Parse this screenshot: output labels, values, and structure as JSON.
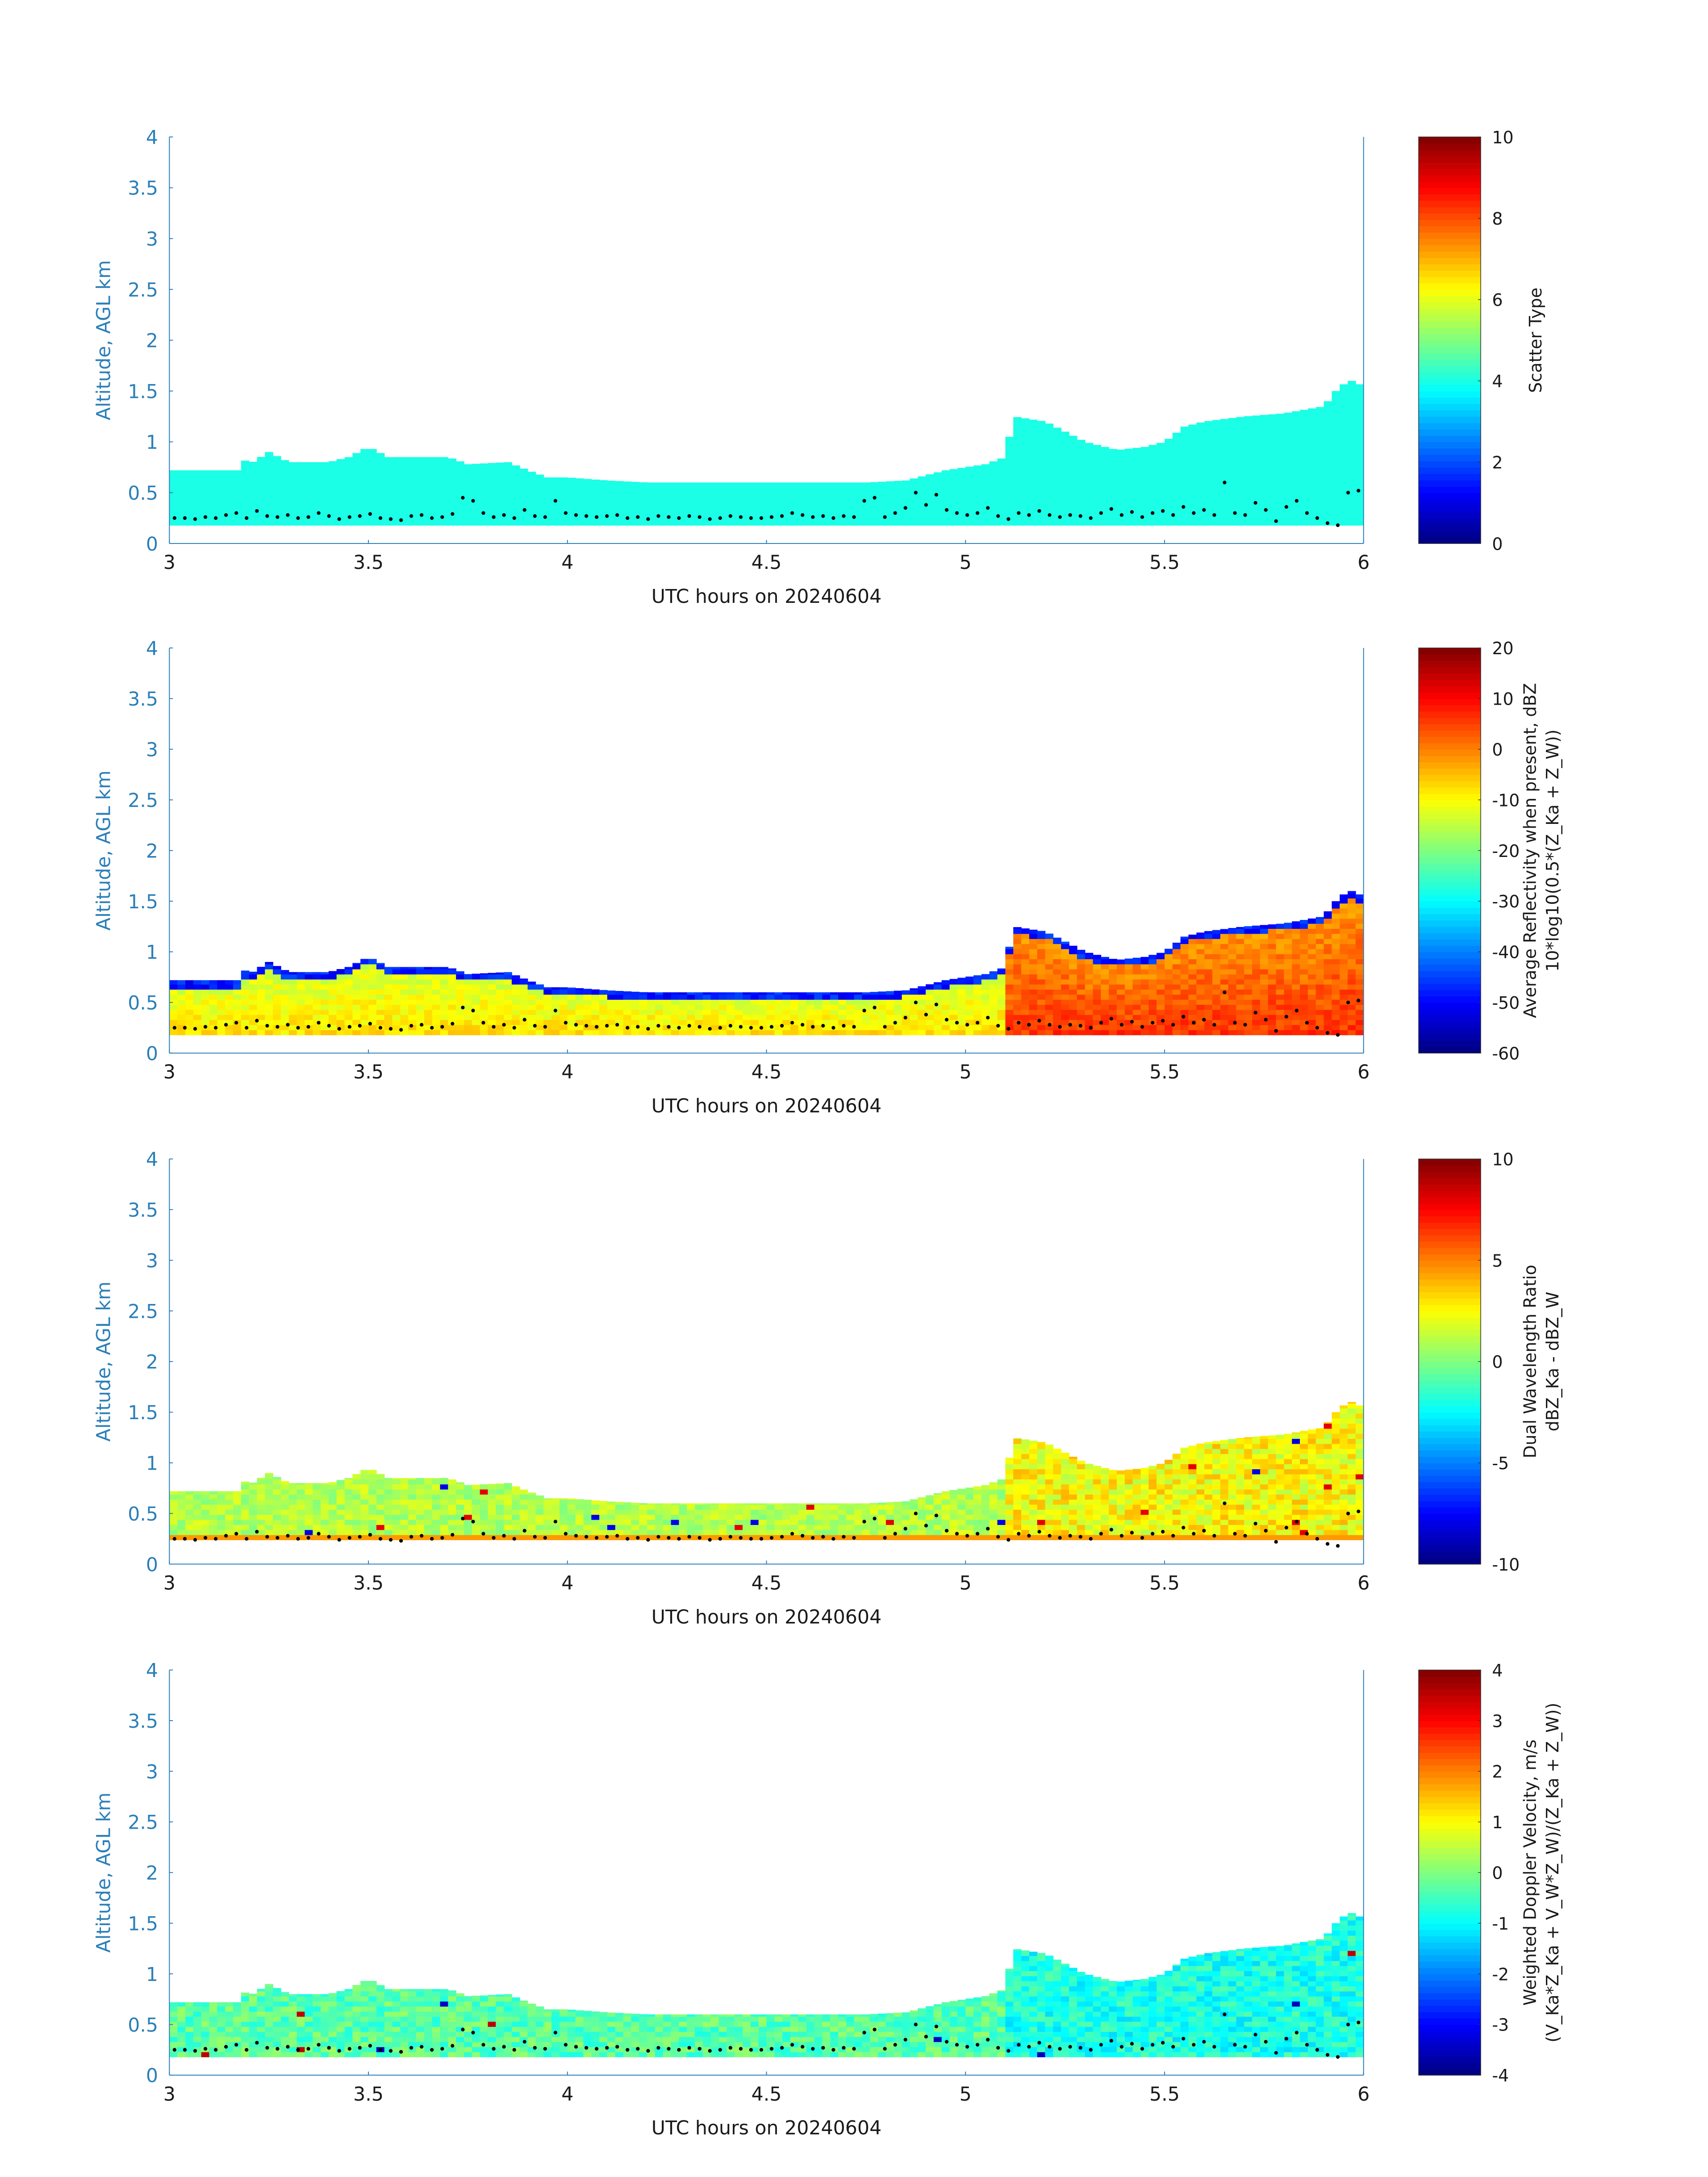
{
  "figure": {
    "date": "20240604"
  },
  "chart_data": [
    {
      "type": "heatmap",
      "title": "",
      "xlabel": "UTC hours on 20240604",
      "ylabel": "Altitude, AGL km",
      "xlim": [
        3,
        6
      ],
      "ylim": [
        0,
        4
      ],
      "xticks": [
        "3",
        "3.5",
        "4",
        "4.5",
        "5",
        "5.5",
        "6"
      ],
      "yticks": [
        "0",
        "0.5",
        "1",
        "1.5",
        "2",
        "2.5",
        "3",
        "3.5",
        "4"
      ],
      "colorbar": {
        "label_lines": [
          "Scatter Type"
        ],
        "clim": [
          0,
          10
        ],
        "ticks": [
          "0",
          "2",
          "4",
          "6",
          "8",
          "10"
        ]
      },
      "field": "scatter_type",
      "cloud_base_km": 0.18,
      "cloud_top_km": [
        [
          3.0,
          0.72
        ],
        [
          3.17,
          0.72
        ],
        [
          3.18,
          0.85
        ],
        [
          3.2,
          0.78
        ],
        [
          3.25,
          0.9
        ],
        [
          3.3,
          0.8
        ],
        [
          3.4,
          0.8
        ],
        [
          3.45,
          0.85
        ],
        [
          3.5,
          0.95
        ],
        [
          3.55,
          0.85
        ],
        [
          3.65,
          0.85
        ],
        [
          3.7,
          0.85
        ],
        [
          3.75,
          0.78
        ],
        [
          3.85,
          0.8
        ],
        [
          3.9,
          0.72
        ],
        [
          3.95,
          0.65
        ],
        [
          4.0,
          0.65
        ],
        [
          4.1,
          0.62
        ],
        [
          4.2,
          0.6
        ],
        [
          4.5,
          0.6
        ],
        [
          4.75,
          0.6
        ],
        [
          4.85,
          0.62
        ],
        [
          4.95,
          0.72
        ],
        [
          5.05,
          0.78
        ],
        [
          5.1,
          0.85
        ],
        [
          5.12,
          1.25
        ],
        [
          5.2,
          1.2
        ],
        [
          5.25,
          1.1
        ],
        [
          5.3,
          1.0
        ],
        [
          5.38,
          0.92
        ],
        [
          5.45,
          0.95
        ],
        [
          5.5,
          1.0
        ],
        [
          5.55,
          1.15
        ],
        [
          5.6,
          1.2
        ],
        [
          5.7,
          1.25
        ],
        [
          5.8,
          1.28
        ],
        [
          5.9,
          1.35
        ],
        [
          5.94,
          1.55
        ],
        [
          5.97,
          1.6
        ],
        [
          6.0,
          1.55
        ]
      ],
      "base_value": 4,
      "dot_heights_km": [
        0.25,
        0.25,
        0.24,
        0.26,
        0.25,
        0.28,
        0.3,
        0.25,
        0.32,
        0.27,
        0.26,
        0.28,
        0.25,
        0.26,
        0.3,
        0.27,
        0.24,
        0.26,
        0.27,
        0.29,
        0.25,
        0.24,
        0.23,
        0.27,
        0.28,
        0.25,
        0.26,
        0.29,
        0.45,
        0.42,
        0.3,
        0.26,
        0.28,
        0.25,
        0.33,
        0.27,
        0.26,
        0.42,
        0.3,
        0.28,
        0.27,
        0.26,
        0.27,
        0.28,
        0.25,
        0.26,
        0.24,
        0.27,
        0.26,
        0.25,
        0.27,
        0.26,
        0.24,
        0.25,
        0.27,
        0.26,
        0.25,
        0.25,
        0.26,
        0.27,
        0.3,
        0.28,
        0.26,
        0.27,
        0.25,
        0.27,
        0.26,
        0.42,
        0.45,
        0.26,
        0.3,
        0.35,
        0.5,
        0.38,
        0.48,
        0.33,
        0.3,
        0.28,
        0.3,
        0.35,
        0.27,
        0.24,
        0.3,
        0.28,
        0.32,
        0.28,
        0.26,
        0.28,
        0.27,
        0.25,
        0.3,
        0.34,
        0.28,
        0.31,
        0.26,
        0.3,
        0.32,
        0.28,
        0.36,
        0.3,
        0.33,
        0.28,
        0.6,
        0.3,
        0.28,
        0.4,
        0.33,
        0.22,
        0.36,
        0.42,
        0.3,
        0.25,
        0.2,
        0.18,
        0.5,
        0.52
      ]
    },
    {
      "type": "heatmap",
      "title": "",
      "xlabel": "UTC hours on 20240604",
      "ylabel": "Altitude, AGL km",
      "xlim": [
        3,
        6
      ],
      "ylim": [
        0,
        4
      ],
      "xticks": [
        "3",
        "3.5",
        "4",
        "4.5",
        "5",
        "5.5",
        "6"
      ],
      "yticks": [
        "0",
        "0.5",
        "1",
        "1.5",
        "2",
        "2.5",
        "3",
        "3.5",
        "4"
      ],
      "colorbar": {
        "label_lines": [
          "Average Reflectivity when present, dBZ",
          "10*log10(0.5*(Z_Ka + Z_W))"
        ],
        "clim": [
          -60,
          20
        ],
        "ticks": [
          "-60",
          "-50",
          "-40",
          "-30",
          "-20",
          "-10",
          "0",
          "10",
          "20"
        ]
      },
      "field": "reflectivity",
      "cloud_base_km": 0.18,
      "cloud_top_km": [
        [
          3.0,
          0.72
        ],
        [
          3.17,
          0.72
        ],
        [
          3.18,
          0.85
        ],
        [
          3.2,
          0.78
        ],
        [
          3.25,
          0.9
        ],
        [
          3.3,
          0.8
        ],
        [
          3.4,
          0.8
        ],
        [
          3.45,
          0.85
        ],
        [
          3.5,
          0.95
        ],
        [
          3.55,
          0.85
        ],
        [
          3.65,
          0.85
        ],
        [
          3.7,
          0.85
        ],
        [
          3.75,
          0.78
        ],
        [
          3.85,
          0.8
        ],
        [
          3.9,
          0.72
        ],
        [
          3.95,
          0.65
        ],
        [
          4.0,
          0.65
        ],
        [
          4.1,
          0.62
        ],
        [
          4.2,
          0.6
        ],
        [
          4.5,
          0.6
        ],
        [
          4.75,
          0.6
        ],
        [
          4.85,
          0.62
        ],
        [
          4.95,
          0.72
        ],
        [
          5.05,
          0.78
        ],
        [
          5.1,
          0.85
        ],
        [
          5.12,
          1.25
        ],
        [
          5.2,
          1.2
        ],
        [
          5.25,
          1.1
        ],
        [
          5.3,
          1.0
        ],
        [
          5.38,
          0.92
        ],
        [
          5.45,
          0.95
        ],
        [
          5.5,
          1.0
        ],
        [
          5.55,
          1.15
        ],
        [
          5.6,
          1.2
        ],
        [
          5.7,
          1.25
        ],
        [
          5.8,
          1.28
        ],
        [
          5.9,
          1.35
        ],
        [
          5.94,
          1.55
        ],
        [
          5.97,
          1.6
        ],
        [
          6.0,
          1.55
        ]
      ],
      "value_range": {
        "before_5_1": [
          -18,
          -8
        ],
        "after_5_1": [
          -8,
          6
        ],
        "cloud_top_edge": -52
      },
      "dot_heights_km": [
        0.25,
        0.25,
        0.24,
        0.26,
        0.25,
        0.28,
        0.3,
        0.25,
        0.32,
        0.27,
        0.26,
        0.28,
        0.25,
        0.26,
        0.3,
        0.27,
        0.24,
        0.26,
        0.27,
        0.29,
        0.25,
        0.24,
        0.23,
        0.27,
        0.28,
        0.25,
        0.26,
        0.29,
        0.45,
        0.42,
        0.3,
        0.26,
        0.28,
        0.25,
        0.33,
        0.27,
        0.26,
        0.42,
        0.3,
        0.28,
        0.27,
        0.26,
        0.27,
        0.28,
        0.25,
        0.26,
        0.24,
        0.27,
        0.26,
        0.25,
        0.27,
        0.26,
        0.24,
        0.25,
        0.27,
        0.26,
        0.25,
        0.25,
        0.26,
        0.27,
        0.3,
        0.28,
        0.26,
        0.27,
        0.25,
        0.27,
        0.26,
        0.42,
        0.45,
        0.26,
        0.3,
        0.35,
        0.5,
        0.38,
        0.48,
        0.33,
        0.3,
        0.28,
        0.3,
        0.35,
        0.27,
        0.24,
        0.3,
        0.28,
        0.32,
        0.28,
        0.26,
        0.28,
        0.27,
        0.25,
        0.3,
        0.34,
        0.28,
        0.31,
        0.26,
        0.3,
        0.32,
        0.28,
        0.36,
        0.3,
        0.33,
        0.28,
        0.6,
        0.3,
        0.28,
        0.4,
        0.33,
        0.22,
        0.36,
        0.42,
        0.3,
        0.25,
        0.2,
        0.18,
        0.5,
        0.52
      ]
    },
    {
      "type": "heatmap",
      "title": "",
      "xlabel": "UTC hours on 20240604",
      "ylabel": "Altitude, AGL km",
      "xlim": [
        3,
        6
      ],
      "ylim": [
        0,
        4
      ],
      "xticks": [
        "3",
        "3.5",
        "4",
        "4.5",
        "5",
        "5.5",
        "6"
      ],
      "yticks": [
        "0",
        "0.5",
        "1",
        "1.5",
        "2",
        "2.5",
        "3",
        "3.5",
        "4"
      ],
      "colorbar": {
        "label_lines": [
          "Dual Wavelength Ratio",
          "dBZ_Ka - dBZ_W"
        ],
        "clim": [
          -10,
          10
        ],
        "ticks": [
          "-10",
          "-5",
          "0",
          "5",
          "10"
        ]
      },
      "field": "dual_wavelength_ratio",
      "cloud_base_km": 0.24,
      "cloud_top_km": [
        [
          3.0,
          0.72
        ],
        [
          3.17,
          0.72
        ],
        [
          3.18,
          0.85
        ],
        [
          3.2,
          0.78
        ],
        [
          3.25,
          0.9
        ],
        [
          3.3,
          0.8
        ],
        [
          3.4,
          0.8
        ],
        [
          3.45,
          0.85
        ],
        [
          3.5,
          0.95
        ],
        [
          3.55,
          0.85
        ],
        [
          3.65,
          0.85
        ],
        [
          3.7,
          0.85
        ],
        [
          3.75,
          0.78
        ],
        [
          3.85,
          0.8
        ],
        [
          3.9,
          0.72
        ],
        [
          3.95,
          0.65
        ],
        [
          4.0,
          0.65
        ],
        [
          4.1,
          0.62
        ],
        [
          4.2,
          0.6
        ],
        [
          4.5,
          0.6
        ],
        [
          4.75,
          0.6
        ],
        [
          4.85,
          0.62
        ],
        [
          4.95,
          0.72
        ],
        [
          5.05,
          0.78
        ],
        [
          5.1,
          0.85
        ],
        [
          5.12,
          1.25
        ],
        [
          5.2,
          1.2
        ],
        [
          5.25,
          1.1
        ],
        [
          5.3,
          1.0
        ],
        [
          5.38,
          0.92
        ],
        [
          5.45,
          0.95
        ],
        [
          5.5,
          1.0
        ],
        [
          5.55,
          1.15
        ],
        [
          5.6,
          1.2
        ],
        [
          5.7,
          1.25
        ],
        [
          5.8,
          1.28
        ],
        [
          5.9,
          1.35
        ],
        [
          5.94,
          1.55
        ],
        [
          5.97,
          1.6
        ],
        [
          6.0,
          1.55
        ]
      ],
      "value_range": {
        "before_5_1": [
          0,
          2
        ],
        "after_5_1": [
          1,
          4
        ]
      },
      "dot_heights_km": [
        0.25,
        0.25,
        0.24,
        0.26,
        0.25,
        0.28,
        0.3,
        0.25,
        0.32,
        0.27,
        0.26,
        0.28,
        0.25,
        0.26,
        0.3,
        0.27,
        0.24,
        0.26,
        0.27,
        0.29,
        0.25,
        0.24,
        0.23,
        0.27,
        0.28,
        0.25,
        0.26,
        0.29,
        0.45,
        0.42,
        0.3,
        0.26,
        0.28,
        0.25,
        0.33,
        0.27,
        0.26,
        0.42,
        0.3,
        0.28,
        0.27,
        0.26,
        0.27,
        0.28,
        0.25,
        0.26,
        0.24,
        0.27,
        0.26,
        0.25,
        0.27,
        0.26,
        0.24,
        0.25,
        0.27,
        0.26,
        0.25,
        0.25,
        0.26,
        0.27,
        0.3,
        0.28,
        0.26,
        0.27,
        0.25,
        0.27,
        0.26,
        0.42,
        0.45,
        0.26,
        0.3,
        0.35,
        0.5,
        0.38,
        0.48,
        0.33,
        0.3,
        0.28,
        0.3,
        0.35,
        0.27,
        0.24,
        0.3,
        0.28,
        0.32,
        0.28,
        0.26,
        0.28,
        0.27,
        0.25,
        0.3,
        0.34,
        0.28,
        0.31,
        0.26,
        0.3,
        0.32,
        0.28,
        0.36,
        0.3,
        0.33,
        0.28,
        0.6,
        0.3,
        0.28,
        0.4,
        0.33,
        0.22,
        0.36,
        0.42,
        0.3,
        0.25,
        0.2,
        0.18,
        0.5,
        0.52
      ]
    },
    {
      "type": "heatmap",
      "title": "",
      "xlabel": "UTC hours on 20240604",
      "ylabel": "Altitude, AGL km",
      "xlim": [
        3,
        6
      ],
      "ylim": [
        0,
        4
      ],
      "xticks": [
        "3",
        "3.5",
        "4",
        "4.5",
        "5",
        "5.5",
        "6"
      ],
      "yticks": [
        "0",
        "0.5",
        "1",
        "1.5",
        "2",
        "2.5",
        "3",
        "3.5",
        "4"
      ],
      "colorbar": {
        "label_lines": [
          "Weighted Doppler Velocity, m/s",
          "(V_Ka*Z_Ka + V_W*Z_W)/(Z_Ka + Z_W))"
        ],
        "clim": [
          -4,
          4
        ],
        "ticks": [
          "-4",
          "-3",
          "-2",
          "-1",
          "0",
          "1",
          "2",
          "3",
          "4"
        ]
      },
      "field": "doppler_velocity",
      "cloud_base_km": 0.18,
      "cloud_top_km": [
        [
          3.0,
          0.72
        ],
        [
          3.17,
          0.72
        ],
        [
          3.18,
          0.85
        ],
        [
          3.2,
          0.78
        ],
        [
          3.25,
          0.9
        ],
        [
          3.3,
          0.8
        ],
        [
          3.4,
          0.8
        ],
        [
          3.45,
          0.85
        ],
        [
          3.5,
          0.95
        ],
        [
          3.55,
          0.85
        ],
        [
          3.65,
          0.85
        ],
        [
          3.7,
          0.85
        ],
        [
          3.75,
          0.78
        ],
        [
          3.85,
          0.8
        ],
        [
          3.9,
          0.72
        ],
        [
          3.95,
          0.65
        ],
        [
          4.0,
          0.65
        ],
        [
          4.1,
          0.62
        ],
        [
          4.2,
          0.6
        ],
        [
          4.5,
          0.6
        ],
        [
          4.75,
          0.6
        ],
        [
          4.85,
          0.62
        ],
        [
          4.95,
          0.72
        ],
        [
          5.05,
          0.78
        ],
        [
          5.1,
          0.85
        ],
        [
          5.12,
          1.25
        ],
        [
          5.2,
          1.2
        ],
        [
          5.25,
          1.1
        ],
        [
          5.3,
          1.0
        ],
        [
          5.38,
          0.92
        ],
        [
          5.45,
          0.95
        ],
        [
          5.5,
          1.0
        ],
        [
          5.55,
          1.15
        ],
        [
          5.6,
          1.2
        ],
        [
          5.7,
          1.25
        ],
        [
          5.8,
          1.28
        ],
        [
          5.9,
          1.35
        ],
        [
          5.94,
          1.55
        ],
        [
          5.97,
          1.6
        ],
        [
          6.0,
          1.55
        ]
      ],
      "value_range": {
        "before_5_1": [
          -0.8,
          0.2
        ],
        "after_5_1": [
          -1.3,
          -0.3
        ]
      },
      "dot_heights_km": [
        0.25,
        0.25,
        0.24,
        0.26,
        0.25,
        0.28,
        0.3,
        0.25,
        0.32,
        0.27,
        0.26,
        0.28,
        0.25,
        0.26,
        0.3,
        0.27,
        0.24,
        0.26,
        0.27,
        0.29,
        0.25,
        0.24,
        0.23,
        0.27,
        0.28,
        0.25,
        0.26,
        0.29,
        0.45,
        0.42,
        0.3,
        0.26,
        0.28,
        0.25,
        0.33,
        0.27,
        0.26,
        0.42,
        0.3,
        0.28,
        0.27,
        0.26,
        0.27,
        0.28,
        0.25,
        0.26,
        0.24,
        0.27,
        0.26,
        0.25,
        0.27,
        0.26,
        0.24,
        0.25,
        0.27,
        0.26,
        0.25,
        0.25,
        0.26,
        0.27,
        0.3,
        0.28,
        0.26,
        0.27,
        0.25,
        0.27,
        0.26,
        0.42,
        0.45,
        0.26,
        0.3,
        0.35,
        0.5,
        0.38,
        0.48,
        0.33,
        0.3,
        0.28,
        0.3,
        0.35,
        0.27,
        0.24,
        0.3,
        0.28,
        0.32,
        0.28,
        0.26,
        0.28,
        0.27,
        0.25,
        0.3,
        0.34,
        0.28,
        0.31,
        0.26,
        0.3,
        0.32,
        0.28,
        0.36,
        0.3,
        0.33,
        0.28,
        0.6,
        0.3,
        0.28,
        0.4,
        0.33,
        0.22,
        0.36,
        0.42,
        0.3,
        0.25,
        0.2,
        0.18,
        0.5,
        0.52
      ]
    }
  ]
}
